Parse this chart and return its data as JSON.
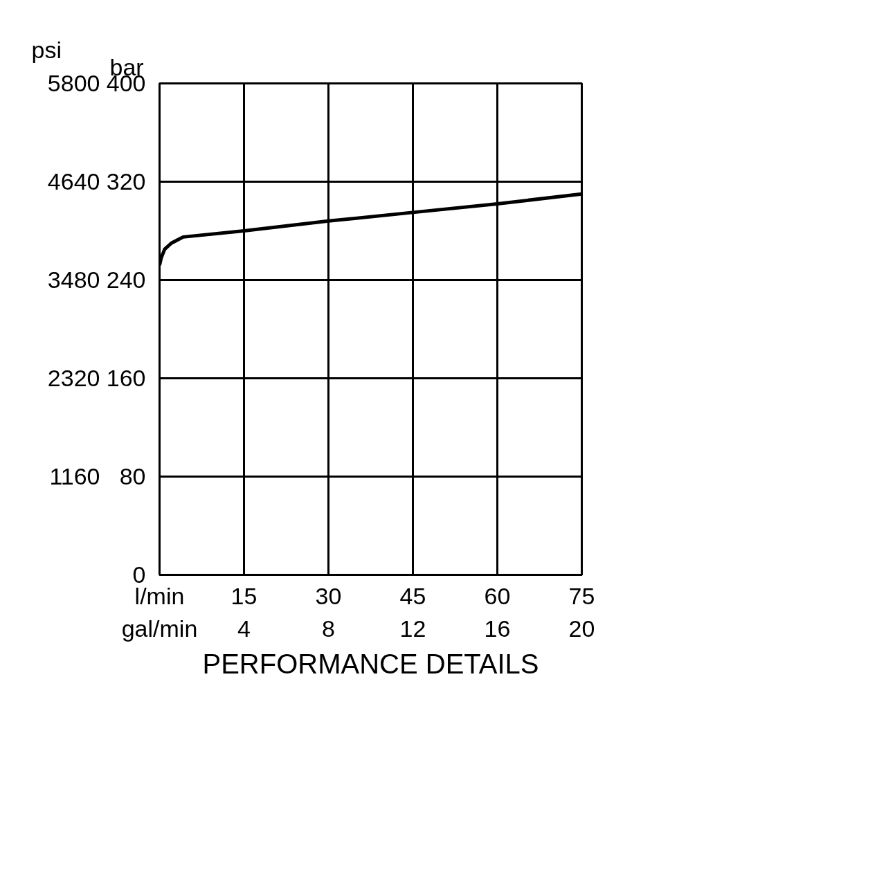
{
  "chart_data": {
    "type": "line",
    "title": "PERFORMANCE DETAILS",
    "xlabel": "l/min",
    "x2label": "gal/min",
    "ylabel": "bar",
    "y2label": "psi",
    "x": [
      0,
      0.3,
      0.9,
      2.1,
      4.2,
      15,
      30,
      45,
      60,
      75
    ],
    "series": [
      {
        "color": "#000000",
        "values": [
          252,
          258,
          265,
          270,
          275,
          280,
          288,
          295,
          302,
          310
        ]
      }
    ],
    "xlim": [
      0,
      75
    ],
    "xticks": [
      15,
      30,
      45,
      60,
      75
    ],
    "x2lim": [
      0,
      20
    ],
    "x2ticks": [
      4,
      8,
      12,
      16,
      20
    ],
    "ylim": [
      0,
      400
    ],
    "yticks": [
      0,
      80,
      160,
      240,
      320,
      400
    ],
    "y2lim": [
      0,
      5800
    ],
    "y2ticks": [
      1160,
      2320,
      3480,
      4640,
      5800
    ],
    "grid": true,
    "marker": "none",
    "line_style": "solid"
  }
}
